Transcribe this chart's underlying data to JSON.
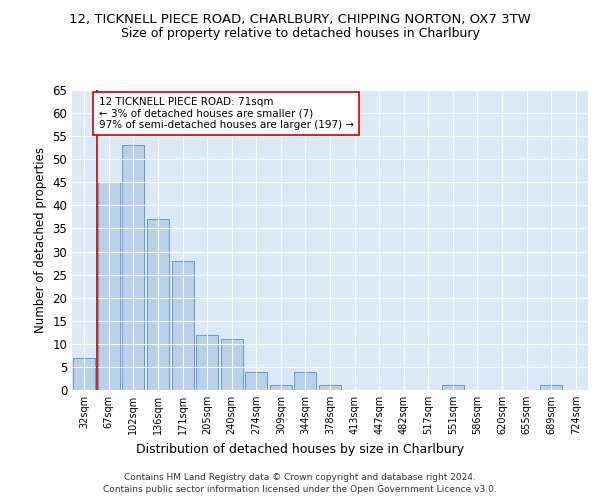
{
  "title_line1": "12, TICKNELL PIECE ROAD, CHARLBURY, CHIPPING NORTON, OX7 3TW",
  "title_line2": "Size of property relative to detached houses in Charlbury",
  "xlabel": "Distribution of detached houses by size in Charlbury",
  "ylabel": "Number of detached properties",
  "categories": [
    "32sqm",
    "67sqm",
    "102sqm",
    "136sqm",
    "171sqm",
    "205sqm",
    "240sqm",
    "274sqm",
    "309sqm",
    "344sqm",
    "378sqm",
    "413sqm",
    "447sqm",
    "482sqm",
    "517sqm",
    "551sqm",
    "586sqm",
    "620sqm",
    "655sqm",
    "689sqm",
    "724sqm"
  ],
  "values": [
    7,
    45,
    53,
    37,
    28,
    12,
    11,
    4,
    1,
    4,
    1,
    0,
    0,
    0,
    0,
    1,
    0,
    0,
    0,
    1,
    0
  ],
  "bar_color": "#b8d0e8",
  "bar_edge_color": "#6699cc",
  "vline_x_index": 0.5,
  "vline_color": "#cc0000",
  "annotation_text": "12 TICKNELL PIECE ROAD: 71sqm\n← 3% of detached houses are smaller (7)\n97% of semi-detached houses are larger (197) →",
  "annotation_box_color": "#ffffff",
  "annotation_box_edge_color": "#cc0000",
  "ylim": [
    0,
    65
  ],
  "yticks": [
    0,
    5,
    10,
    15,
    20,
    25,
    30,
    35,
    40,
    45,
    50,
    55,
    60,
    65
  ],
  "footer_line1": "Contains HM Land Registry data © Crown copyright and database right 2024.",
  "footer_line2": "Contains public sector information licensed under the Open Government Licence v3.0.",
  "background_color": "#dce8f5",
  "bar_width": 0.9
}
